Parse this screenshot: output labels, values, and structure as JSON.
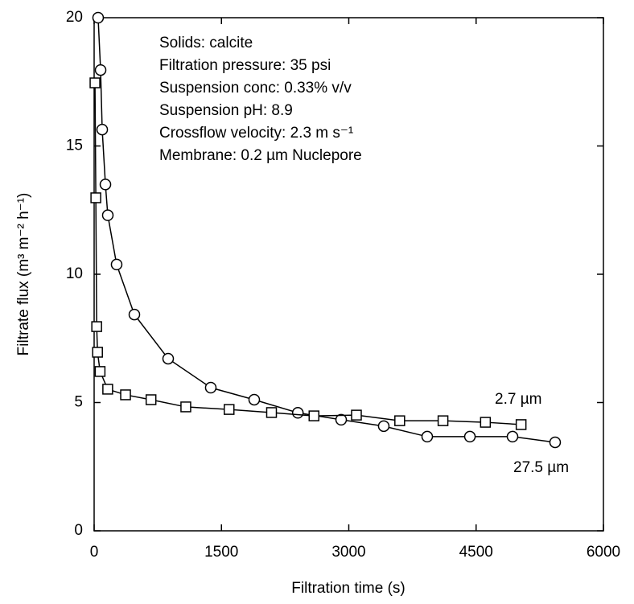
{
  "chart_data": {
    "type": "line",
    "x_label": "Filtration time (s)",
    "y_label": "Filtrate flux (m³ m⁻² h⁻¹)",
    "annotations": [
      "Solids: calcite",
      "Filtration pressure: 35 psi",
      "Suspension conc: 0.33% v/v",
      "Suspension pH: 8.9",
      "Crossflow velocity: 2.3 m s⁻¹",
      "Membrane: 0.2 µm Nuclepore"
    ],
    "xlim": [
      0,
      6000
    ],
    "xticks": [
      0,
      1500,
      3000,
      4500,
      6000
    ],
    "ylim": [
      0,
      20
    ],
    "yticks": [
      0,
      5,
      10,
      15,
      20
    ],
    "series": [
      {
        "name": "27.5 µm",
        "color": "#000000",
        "marker": "circle",
        "x": [
          47,
          76,
          95,
          133,
          161,
          265,
          474,
          872,
          1374,
          1886,
          2400,
          2910,
          3412,
          3924,
          4427,
          4929,
          5431
        ],
        "values": [
          20,
          17.96,
          15.64,
          13.5,
          12.3,
          10.38,
          8.43,
          6.71,
          5.58,
          5.11,
          4.6,
          4.33,
          4.08,
          3.67,
          3.67,
          3.67,
          3.45
        ]
      },
      {
        "name": "2.7 µm",
        "color": "#000000",
        "marker": "square",
        "x": [
          10,
          20,
          30,
          40,
          70,
          160,
          370,
          670,
          1080,
          1590,
          2090,
          2590,
          3090,
          3600,
          4110,
          4610,
          5030
        ],
        "values": [
          17.46,
          12.98,
          7.96,
          6.96,
          6.21,
          5.52,
          5.3,
          5.11,
          4.83,
          4.73,
          4.61,
          4.48,
          4.51,
          4.29,
          4.29,
          4.23,
          4.14
        ]
      }
    ]
  }
}
